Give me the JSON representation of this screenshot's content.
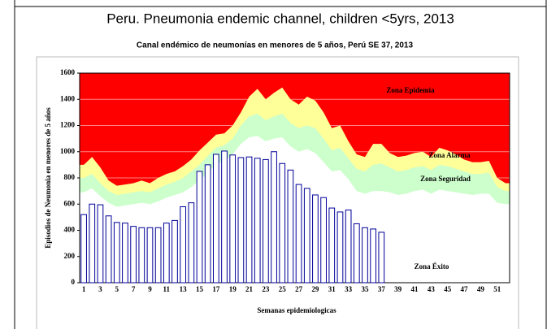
{
  "chart_data": {
    "type": "bar",
    "title": "Peru. Pneumonia endemic channel, children <5yrs, 2013",
    "subtitle": "Canal endémico de neumonías en menores de 5 años, Perú SE 37, 2013",
    "x_label": "Semanas epidemiologicas",
    "y_label": "Episodios de Neumonia en menores de 5 años",
    "categories": [
      "1",
      null,
      "3",
      null,
      "5",
      null,
      "7",
      null,
      "9",
      null,
      "11",
      null,
      "13",
      null,
      "15",
      null,
      "17",
      null,
      "19",
      null,
      "21",
      null,
      "23",
      null,
      "25",
      null,
      "27",
      null,
      "29",
      null,
      "31",
      null,
      "33",
      null,
      "35",
      null,
      "37",
      null,
      "39",
      null,
      "41",
      null,
      "43",
      null,
      "45",
      null,
      "47",
      null,
      "49",
      null,
      "51",
      null
    ],
    "values": [
      520,
      600,
      595,
      510,
      460,
      455,
      430,
      420,
      420,
      420,
      455,
      475,
      580,
      610,
      850,
      900,
      980,
      1005,
      975,
      955,
      960,
      950,
      940,
      1000,
      910,
      860,
      750,
      720,
      670,
      650,
      570,
      540,
      555,
      450,
      420,
      410,
      385,
      null,
      null,
      null,
      null,
      null,
      null,
      null,
      null,
      null,
      null,
      null,
      null,
      null,
      null,
      null
    ],
    "color": "#000099",
    "background_color": "#ff0000",
    "channel": [
      {
        "color": "#ffff99",
        "values": [
          900,
          960,
          880,
          780,
          740,
          750,
          760,
          780,
          760,
          800,
          830,
          850,
          890,
          940,
          1010,
          1070,
          1130,
          1140,
          1200,
          1300,
          1420,
          1480,
          1400,
          1450,
          1490,
          1400,
          1360,
          1420,
          1390,
          1300,
          1180,
          1200,
          1080,
          980,
          960,
          1060,
          1060,
          990,
          960,
          970,
          990,
          1000,
          960,
          1030,
          1010,
          980,
          940,
          920,
          920,
          930,
          800,
          760
        ]
      },
      {
        "color": "#ccffcc",
        "values": [
          800,
          830,
          760,
          700,
          670,
          680,
          690,
          700,
          690,
          720,
          750,
          770,
          800,
          850,
          900,
          970,
          1030,
          1050,
          1100,
          1200,
          1270,
          1290,
          1240,
          1270,
          1290,
          1220,
          1180,
          1200,
          1180,
          1100,
          1010,
          1030,
          950,
          870,
          850,
          900,
          910,
          880,
          850,
          860,
          880,
          890,
          860,
          900,
          890,
          870,
          850,
          830,
          830,
          840,
          730,
          700
        ]
      },
      {
        "color": "#ffffff",
        "values": [
          690,
          720,
          660,
          610,
          580,
          590,
          600,
          610,
          600,
          620,
          650,
          670,
          690,
          730,
          780,
          840,
          900,
          930,
          980,
          1060,
          1110,
          1120,
          1080,
          1100,
          1110,
          1040,
          1000,
          1020,
          990,
          920,
          850,
          860,
          790,
          700,
          680,
          700,
          700,
          690,
          670,
          680,
          700,
          710,
          680,
          710,
          700,
          690,
          680,
          670,
          680,
          680,
          610,
          600
        ]
      }
    ],
    "annotations": [
      "Zona Epidemia",
      "Zona Alarma",
      "Zona Seguridad",
      "Zona Éxito"
    ],
    "ylim": [
      0,
      1600
    ],
    "yticks": [
      0,
      200,
      400,
      600,
      800,
      1000,
      1200,
      1400,
      1600
    ],
    "grid": true
  }
}
